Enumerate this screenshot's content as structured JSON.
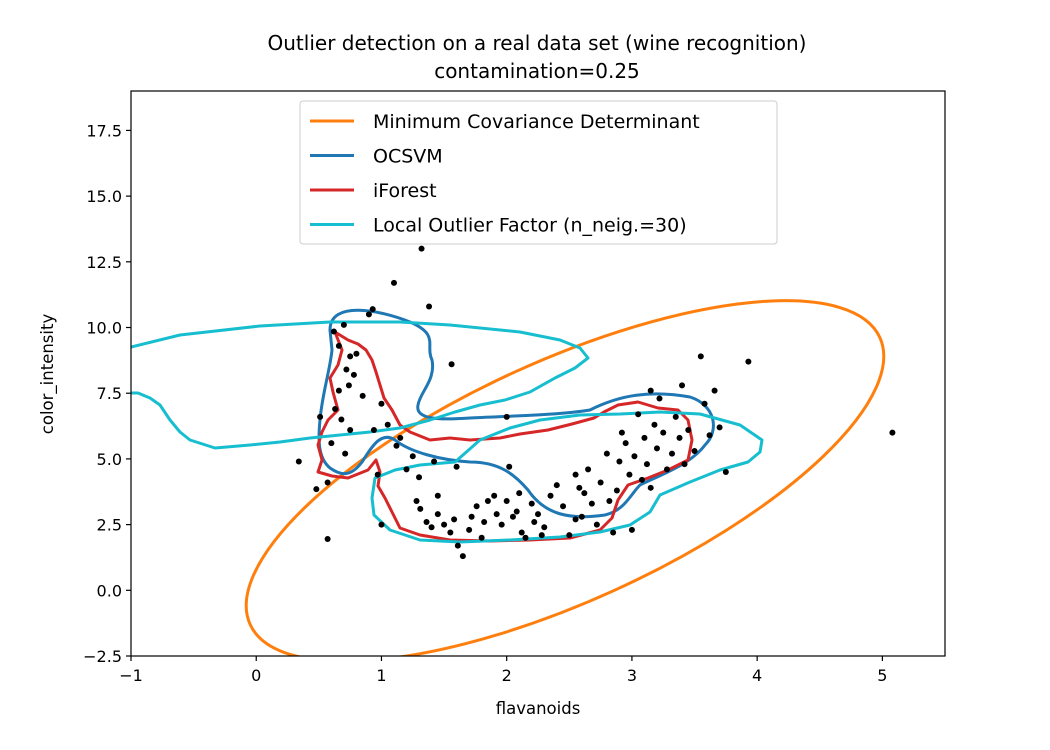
{
  "chart_data": {
    "type": "scatter",
    "title": "Outlier detection on a real data set (wine recognition)",
    "subtitle": "contamination=0.25",
    "xlabel": "flavanoids",
    "ylabel": "color_intensity",
    "xlim": [
      -1,
      5.5
    ],
    "ylim": [
      -2.5,
      19
    ],
    "xticks": [
      -1,
      0,
      1,
      2,
      3,
      4,
      5
    ],
    "yticks": [
      -2.5,
      0.0,
      2.5,
      5.0,
      7.5,
      10.0,
      12.5,
      15.0,
      17.5
    ],
    "xtick_labels": [
      "−1",
      "0",
      "1",
      "2",
      "3",
      "4",
      "5"
    ],
    "ytick_labels": [
      "−2.5",
      "0.0",
      "2.5",
      "5.0",
      "7.5",
      "10.0",
      "12.5",
      "15.0",
      "17.5"
    ],
    "grid": false,
    "legend_position": "upper-center",
    "legend": [
      {
        "label": "Minimum Covariance Determinant",
        "color": "#ff7f0e"
      },
      {
        "label": "OCSVM",
        "color": "#1f77b4"
      },
      {
        "label": "iForest",
        "color": "#d62728"
      },
      {
        "label": "Local Outlier Factor (n_neig.=30)",
        "color": "#17becf"
      }
    ],
    "point_color": "#000000",
    "points": [
      [
        0.34,
        4.9
      ],
      [
        0.48,
        3.85
      ],
      [
        0.51,
        6.6
      ],
      [
        0.57,
        1.95
      ],
      [
        0.57,
        4.1
      ],
      [
        0.6,
        5.6
      ],
      [
        0.62,
        9.85
      ],
      [
        0.66,
        7.6
      ],
      [
        0.66,
        9.3
      ],
      [
        0.68,
        6.5
      ],
      [
        0.7,
        10.1
      ],
      [
        0.72,
        8.4
      ],
      [
        0.75,
        6.1
      ],
      [
        0.75,
        8.9
      ],
      [
        0.78,
        8.2
      ],
      [
        0.8,
        9.0
      ],
      [
        0.85,
        7.4
      ],
      [
        0.9,
        10.5
      ],
      [
        0.93,
        10.7
      ],
      [
        0.94,
        6.1
      ],
      [
        0.97,
        4.4
      ],
      [
        1.0,
        2.5
      ],
      [
        1.0,
        7.1
      ],
      [
        1.1,
        11.7
      ],
      [
        1.12,
        5.5
      ],
      [
        1.2,
        4.6
      ],
      [
        1.25,
        5.1
      ],
      [
        1.28,
        3.4
      ],
      [
        1.31,
        3.1
      ],
      [
        1.32,
        13.0
      ],
      [
        1.36,
        2.6
      ],
      [
        1.38,
        10.8
      ],
      [
        1.4,
        2.4
      ],
      [
        1.42,
        4.9
      ],
      [
        1.45,
        2.9
      ],
      [
        1.5,
        2.5
      ],
      [
        1.55,
        2.2
      ],
      [
        1.56,
        8.6
      ],
      [
        1.58,
        2.7
      ],
      [
        1.6,
        4.7
      ],
      [
        1.61,
        1.7
      ],
      [
        1.65,
        1.3
      ],
      [
        1.7,
        2.3
      ],
      [
        1.72,
        2.8
      ],
      [
        1.76,
        3.2
      ],
      [
        1.8,
        2.0
      ],
      [
        1.82,
        2.6
      ],
      [
        1.85,
        3.4
      ],
      [
        1.9,
        3.6
      ],
      [
        1.92,
        2.9
      ],
      [
        1.96,
        2.5
      ],
      [
        2.0,
        3.4
      ],
      [
        2.02,
        4.7
      ],
      [
        2.05,
        2.8
      ],
      [
        2.08,
        3.0
      ],
      [
        2.1,
        3.7
      ],
      [
        2.12,
        2.2
      ],
      [
        2.15,
        2.0
      ],
      [
        2.2,
        3.3
      ],
      [
        2.22,
        2.6
      ],
      [
        2.25,
        2.9
      ],
      [
        2.28,
        2.1
      ],
      [
        2.3,
        2.4
      ],
      [
        2.35,
        3.6
      ],
      [
        2.4,
        4.0
      ],
      [
        2.45,
        3.2
      ],
      [
        2.5,
        2.1
      ],
      [
        2.55,
        2.7
      ],
      [
        2.58,
        3.9
      ],
      [
        2.6,
        2.8
      ],
      [
        2.62,
        3.7
      ],
      [
        2.65,
        4.6
      ],
      [
        2.68,
        3.3
      ],
      [
        2.72,
        2.5
      ],
      [
        2.75,
        4.1
      ],
      [
        2.8,
        5.2
      ],
      [
        2.82,
        3.4
      ],
      [
        2.85,
        2.2
      ],
      [
        2.88,
        3.8
      ],
      [
        2.9,
        4.9
      ],
      [
        2.92,
        6.0
      ],
      [
        2.95,
        5.6
      ],
      [
        2.98,
        4.4
      ],
      [
        3.0,
        2.3
      ],
      [
        3.02,
        5.1
      ],
      [
        3.05,
        6.7
      ],
      [
        3.08,
        4.2
      ],
      [
        3.1,
        5.8
      ],
      [
        3.12,
        4.8
      ],
      [
        3.15,
        3.9
      ],
      [
        3.18,
        6.3
      ],
      [
        3.2,
        5.4
      ],
      [
        3.22,
        7.3
      ],
      [
        3.25,
        6.0
      ],
      [
        3.28,
        4.6
      ],
      [
        3.32,
        5.2
      ],
      [
        3.35,
        6.6
      ],
      [
        3.38,
        5.8
      ],
      [
        3.42,
        4.8
      ],
      [
        3.45,
        6.1
      ],
      [
        3.5,
        5.3
      ],
      [
        3.55,
        8.9
      ],
      [
        3.58,
        7.1
      ],
      [
        3.62,
        5.9
      ],
      [
        3.66,
        7.6
      ],
      [
        3.7,
        6.2
      ],
      [
        3.75,
        4.5
      ],
      [
        3.93,
        8.7
      ],
      [
        5.08,
        6.0
      ],
      [
        0.63,
        6.9
      ],
      [
        0.71,
        5.2
      ],
      [
        0.74,
        7.8
      ],
      [
        1.05,
        6.3
      ],
      [
        1.15,
        5.8
      ],
      [
        1.3,
        4.3
      ],
      [
        1.45,
        3.6
      ],
      [
        2.55,
        4.4
      ],
      [
        3.4,
        7.8
      ],
      [
        3.15,
        7.6
      ],
      [
        2.0,
        6.6
      ]
    ],
    "curves": {
      "Minimum Covariance Determinant": "ellipse centered near (2.1, 4.2), extending from x≈-0.2 to x≈5.15 and y≈-2.0 to y≈10.3",
      "OCSVM": "closed decision contour around x 0.4–3.7, y 3.3–10.4",
      "iForest": "closed contour around x 0.5–3.5, y 1.9–9.3",
      "Local Outlier Factor (n_neig.=30)": "two-lobed contour: left lobe x −1–2.6, y 5.2–10.3; right lobe x 0.9–4.05, y 1.8–6.8"
    }
  }
}
